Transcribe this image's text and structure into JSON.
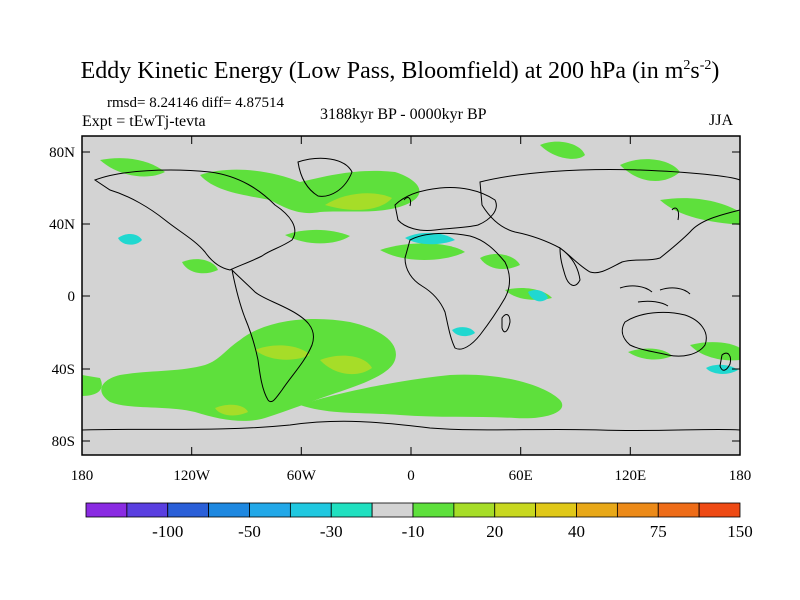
{
  "title": {
    "main": "Eddy Kinetic Energy (Low Pass, Bloomfield) at 200 hPa (in m",
    "sup1": "2",
    "mid": "s",
    "sup2": "-2",
    "end": ")"
  },
  "stats": "rmsd= 8.24146 diff= 4.87514",
  "experiment": "Expt = tEwTj-tevta",
  "period": "3188kyr BP - 0000kyr BP",
  "season": "JJA",
  "lat_labels": [
    "80N",
    "40N",
    "0",
    "40S",
    "80S"
  ],
  "lon_labels": [
    "180",
    "120W",
    "60W",
    "0",
    "60E",
    "120E",
    "180"
  ],
  "colorbar": {
    "labels": [
      "-100",
      "-50",
      "-30",
      "-10",
      "20",
      "40",
      "75",
      "150"
    ],
    "colors": [
      "#8a2be2",
      "#5a3fe0",
      "#2a5fd8",
      "#1e88e0",
      "#22a8e8",
      "#20c8e0",
      "#20e0c0",
      "#d3d3d3",
      "#5ee03c",
      "#a6dd28",
      "#c8d820",
      "#e0c818",
      "#e8a818",
      "#ec8a18",
      "#ee6c18",
      "#ee4a14"
    ]
  },
  "colors": {
    "background": "#d3d3d3",
    "positive_low": "#5ee03c",
    "positive_mid": "#a6dd28",
    "negative_low": "#20d8d0"
  }
}
